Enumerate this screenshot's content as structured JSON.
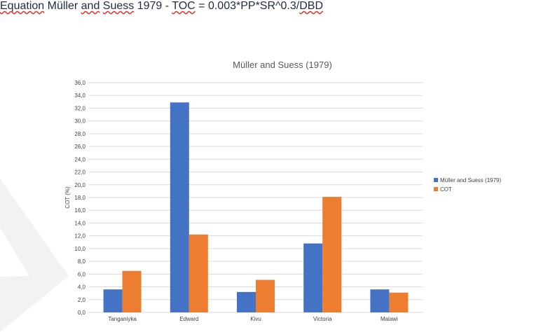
{
  "document": {
    "heading_parts": [
      {
        "text": "Equation",
        "squiggle": true
      },
      {
        "text": " "
      },
      {
        "text": "Müller",
        "squiggle": false
      },
      {
        "text": " "
      },
      {
        "text": "and",
        "squiggle": true
      },
      {
        "text": " "
      },
      {
        "text": "Suess",
        "squiggle": true
      },
      {
        "text": " 1979 - "
      },
      {
        "text": "TOC",
        "squiggle": true
      },
      {
        "text": " = 0.003*PP*SR^0.3/"
      },
      {
        "text": "DBD",
        "squiggle": true
      }
    ]
  },
  "colors": {
    "series1": "#4472c4",
    "series2": "#ed7d31",
    "grid": "#d9d9d9",
    "text": "#404040",
    "title": "#595959",
    "watermark": "#f2f2f2"
  },
  "chart_data": {
    "type": "bar",
    "title": "Müller and Suess (1979)",
    "xlabel": "",
    "ylabel": "COT (%)",
    "ylim": [
      0,
      36
    ],
    "ytick_step": 2,
    "ytick_labels": [
      "0,0",
      "2,0",
      "4,0",
      "6,0",
      "8,0",
      "10,0",
      "12,0",
      "14,0",
      "16,0",
      "18,0",
      "20,0",
      "22,0",
      "24,0",
      "26,0",
      "28,0",
      "30,0",
      "32,0",
      "34,0",
      "36,0"
    ],
    "grid": true,
    "legend_position": "right",
    "categories": [
      "Tanganiyka",
      "Edward",
      "Kivu",
      "Victoria",
      "Malawi"
    ],
    "series": [
      {
        "name": "Müller and Suess (1979)",
        "values": [
          3.6,
          32.9,
          3.2,
          10.8,
          3.6
        ]
      },
      {
        "name": "COT",
        "values": [
          6.5,
          12.2,
          5.1,
          18.1,
          3.1
        ]
      }
    ]
  }
}
